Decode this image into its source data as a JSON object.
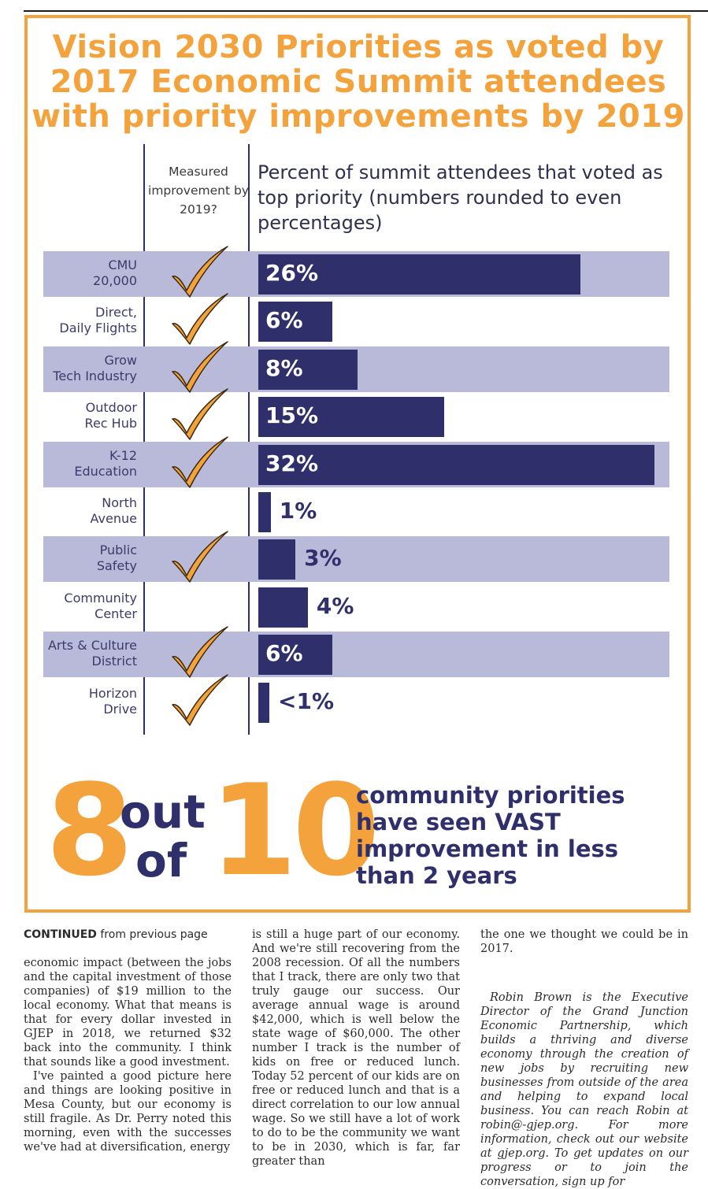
{
  "title_lines": [
    "Vision 2030 Priorities as voted by",
    "2017 Economic Summit attendees",
    "with priority improvements by 2019"
  ],
  "column_headers": {
    "left": "Measured improvement by 2019?",
    "right": "Percent of summit attendees that voted as top priority (numbers rounded to even percentages)"
  },
  "chart_data": {
    "type": "bar",
    "orientation": "horizontal",
    "categories": [
      "CMU 20,000",
      "Direct, Daily Flights",
      "Grow Tech Industry",
      "Outdoor Rec Hub",
      "K-12 Education",
      "North Avenue",
      "Public Safety",
      "Community Center",
      "Arts & Culture District",
      "Horizon Drive"
    ],
    "values": [
      26,
      6,
      8,
      15,
      32,
      1,
      3,
      4,
      6,
      0.5
    ],
    "value_labels": [
      "26%",
      "6%",
      "8%",
      "15%",
      "32%",
      "1%",
      "3%",
      "4%",
      "6%",
      "<1%"
    ],
    "improved": [
      true,
      true,
      true,
      true,
      true,
      false,
      true,
      false,
      true,
      true
    ],
    "xlim": [
      0,
      32
    ],
    "colors": {
      "bar": "#2f2f6b",
      "row_shade": "#b9b9d9",
      "check": "#f4a23c"
    }
  },
  "rows": [
    {
      "line1": "CMU",
      "line2": "20,000"
    },
    {
      "line1": "Direct,",
      "line2": "Daily Flights"
    },
    {
      "line1": "Grow",
      "line2": "Tech Industry"
    },
    {
      "line1": "Outdoor",
      "line2": "Rec Hub"
    },
    {
      "line1": "K-12",
      "line2": "Education"
    },
    {
      "line1": "North",
      "line2": "Avenue"
    },
    {
      "line1": "Public",
      "line2": "Safety"
    },
    {
      "line1": "Community",
      "line2": "Center"
    },
    {
      "line1": "Arts & Culture",
      "line2": "District"
    },
    {
      "line1": "Horizon",
      "line2": "Drive"
    }
  ],
  "summary": {
    "eight": "8",
    "out": "out",
    "of": "of",
    "ten": "10",
    "lines": [
      "community priorities",
      "have seen VAST",
      "improvement in less",
      "than 2 years"
    ]
  },
  "article": {
    "continued_bold": "CONTINUED",
    "continued_rest": " from previous page",
    "col1_p1": "economic impact (between the jobs and the capital investment of those companies) of $19 million to the local economy. What that means is that for every dollar invested in GJEP in 2018, we returned $32 back into the community. I think that sounds like a good investment.",
    "col1_p2": "I've painted a good picture here and things are looking positive in Mesa County, but our economy is still fragile. As Dr. Perry noted this morning, even with the successes we've had at diversification, energy",
    "col2_p1": "is still a huge part of our economy. And we're still recovering from the 2008 recession. Of all the numbers that I track, there are only two that truly gauge our success. Our average annual wage is around $42,000, which is well below the state wage of $60,000. The other number I track is the number of kids on free or reduced lunch. Today 52 percent of our kids are on free or reduced lunch and that is a direct correlation to our low annual wage. So we still have a lot of work to do to be the community we want to be in 2030, which is far, far greater than",
    "col3_p1": "the one we thought we could be in 2017.",
    "col3_bio": "Robin Brown is the Executive Director of the Grand Junction Economic Partnership, which builds a thriving and diverse economy through the creation of new jobs by recruiting new businesses from outside of the area and helping to expand local business. You can reach Robin at robin@-gjep.org. For more information, check out our website at gjep.org. To get updates on our progress or to join the conversation, sign up for"
  }
}
